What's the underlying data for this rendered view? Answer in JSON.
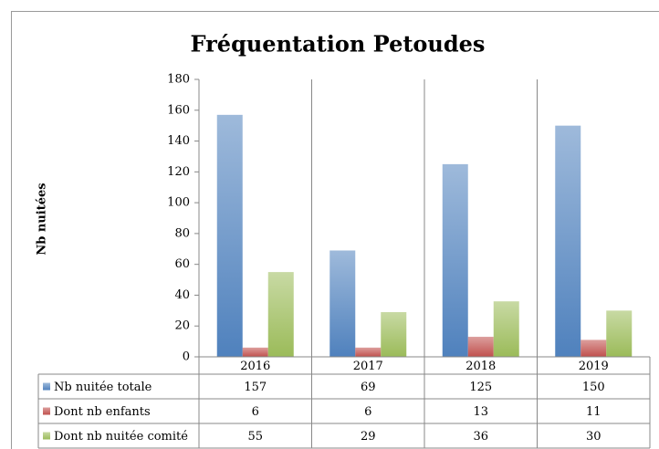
{
  "chart_data": {
    "type": "bar",
    "title": "Fréquentation Petoudes",
    "y_label": "Nb nuitées",
    "categories": [
      "2016",
      "2017",
      "2018",
      "2019"
    ],
    "series": [
      {
        "name": "Nb nuitée totale",
        "color": "#4f81bd",
        "values": [
          157,
          69,
          125,
          150
        ]
      },
      {
        "name": "Dont nb enfants",
        "color": "#c0504d",
        "values": [
          6,
          6,
          13,
          11
        ]
      },
      {
        "name": "Dont nb nuitée comité",
        "color": "#9bbb59",
        "values": [
          55,
          29,
          36,
          30
        ]
      }
    ],
    "ylim": [
      0,
      180
    ],
    "yticks": [
      0,
      20,
      40,
      60,
      80,
      100,
      120,
      140,
      160,
      180
    ],
    "grid": false
  }
}
